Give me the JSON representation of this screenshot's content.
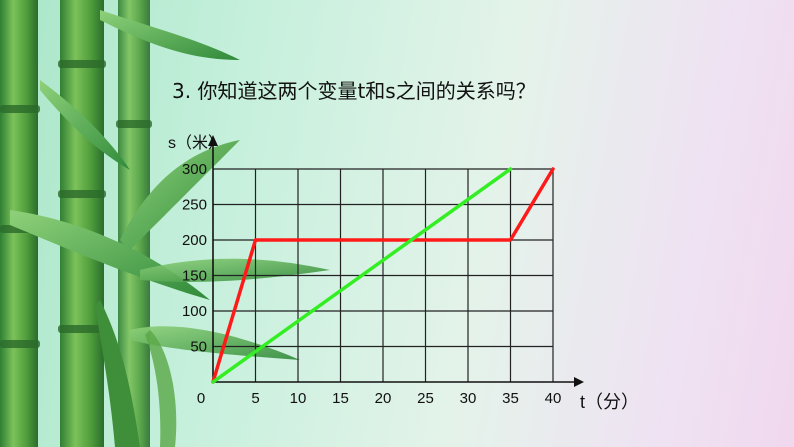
{
  "question": "3. 你知道这两个变量t和s之间的关系吗？",
  "chart_data": {
    "type": "line",
    "xlabel": "t（分）",
    "ylabel": "s（米）",
    "x_ticks": [
      0,
      5,
      10,
      15,
      20,
      25,
      30,
      35,
      40
    ],
    "y_ticks": [
      50,
      100,
      150,
      200,
      250,
      300
    ],
    "xlim": [
      0,
      40
    ],
    "ylim": [
      0,
      300
    ],
    "grid": true,
    "series": [
      {
        "color": "#ff1a1a",
        "points": [
          [
            0,
            0
          ],
          [
            5,
            200
          ],
          [
            35,
            200
          ],
          [
            40,
            300
          ]
        ]
      },
      {
        "color": "#33ee22",
        "points": [
          [
            0,
            0
          ],
          [
            35,
            300
          ]
        ]
      }
    ]
  }
}
